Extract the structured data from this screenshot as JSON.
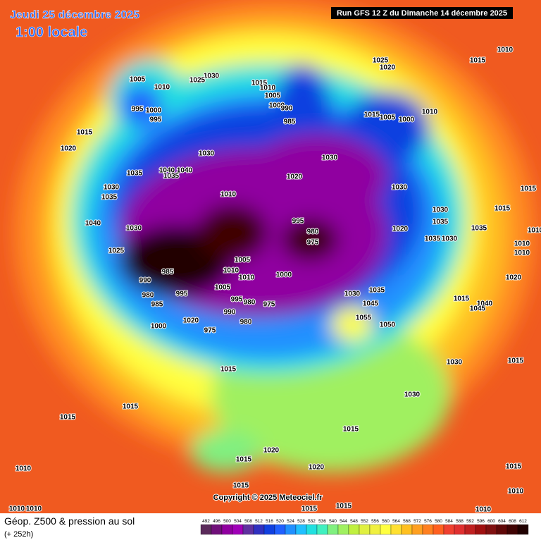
{
  "header": {
    "date": "Jeudi 25 décembre 2025",
    "time": "1:00 locale",
    "run": "Run GFS 12 Z du Dimanche 14 décembre 2025"
  },
  "copyright": "Copyright © 2025 Meteociel.fr",
  "footer": {
    "title": "Géop. Z500 & pression au sol",
    "lead": "(+ 252h)"
  },
  "scale": {
    "values": [
      492,
      496,
      500,
      504,
      508,
      512,
      516,
      520,
      524,
      528,
      532,
      536,
      540,
      544,
      548,
      552,
      556,
      560,
      564,
      568,
      572,
      576,
      580,
      584,
      588,
      592,
      596,
      600,
      604,
      608,
      612
    ],
    "colors": [
      "#5a2a5a",
      "#70107a",
      "#9000a0",
      "#a000b8",
      "#6030a0",
      "#3030c0",
      "#1040e0",
      "#2060ff",
      "#2090ff",
      "#20c0ff",
      "#20e0e0",
      "#40f0c0",
      "#80f080",
      "#a0f060",
      "#c0f040",
      "#e0f040",
      "#f0f040",
      "#ffff40",
      "#ffe030",
      "#ffc020",
      "#ffa020",
      "#ff8020",
      "#ff6020",
      "#f04030",
      "#e03030",
      "#c02020",
      "#a01010",
      "#801010",
      "#600808",
      "#400404",
      "#200000"
    ]
  },
  "pressure_labels": [
    1005,
    1010,
    1030,
    1025,
    995,
    1000,
    995,
    1015,
    1010,
    1005,
    1000,
    990,
    985,
    1025,
    1020,
    1015,
    1010,
    1015,
    1005,
    1000,
    1010,
    1015,
    1020,
    1030,
    1030,
    1040,
    1040,
    1035,
    1035,
    1020,
    1030,
    1035,
    1010,
    1030,
    1015,
    1015,
    1030,
    1035,
    1020,
    1035,
    1010,
    1040,
    1030,
    995,
    980,
    975,
    1035,
    1030,
    1010,
    1010,
    1025,
    1005,
    990,
    985,
    1010,
    1010,
    1000,
    1020,
    1005,
    995,
    980,
    985,
    995,
    980,
    975,
    1035,
    1030,
    1045,
    1015,
    1040,
    1045,
    990,
    1000,
    1020,
    975,
    980,
    1055,
    1050,
    1030,
    1015,
    1015,
    1030,
    1015,
    1015,
    1015,
    1020,
    1015,
    1010,
    1020,
    1015,
    1015,
    1010,
    1010,
    1010,
    1015,
    1015,
    1010
  ]
}
